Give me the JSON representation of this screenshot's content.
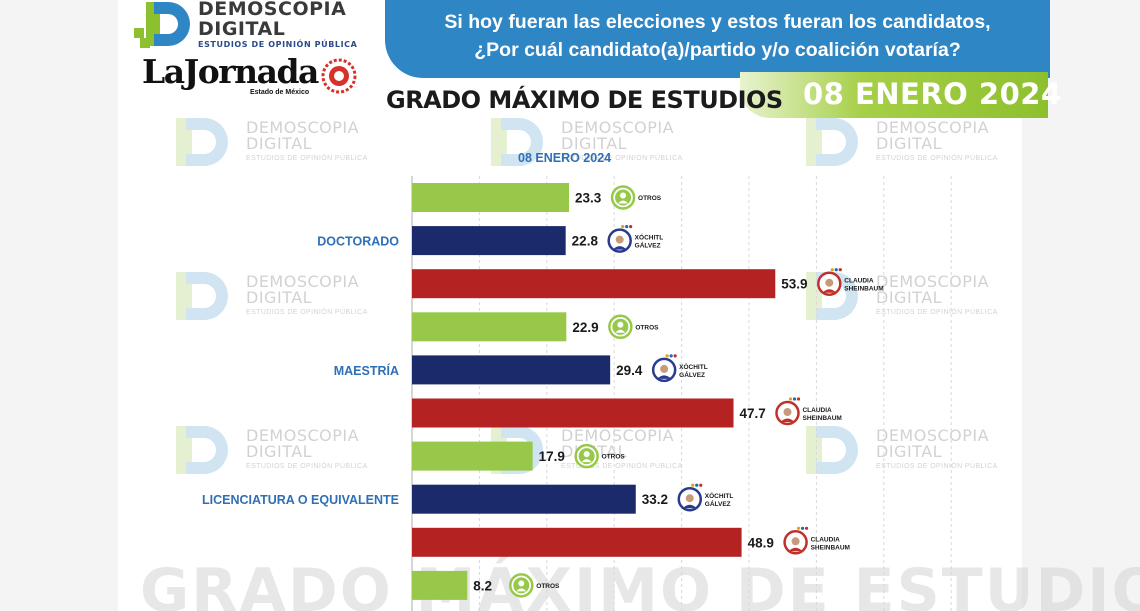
{
  "brand": {
    "logo_line1": "DEMOSCOPIA",
    "logo_line2": "DIGITAL",
    "logo_sub": "ESTUDIOS DE OPINIÓN PÚBLICA",
    "newspaper": "LaJornada",
    "newspaper_sub": "Estado de México"
  },
  "header": {
    "question_line1": "Si hoy fueran las elecciones y estos fueran los candidatos,",
    "question_line2": "¿Por cuál candidato(a)/partido y/o coalición votaría?",
    "date": "08 ENERO 2024",
    "section_title": "GRADO MÁXIMO DE ESTUDIOS"
  },
  "watermark": {
    "line1": "DEMOSCOPIA",
    "line2": "DIGITAL",
    "line3": "ESTUDIOS DE OPINIÓN PÚBLICA",
    "big_text": "GRADO MÁXIMO DE ESTUDIOS"
  },
  "colors": {
    "otros": "#97c84a",
    "xochitl": "#1b2a6b",
    "claudia": "#b52222",
    "label_blue": "#2f6fb5",
    "banner": "#2f86c5"
  },
  "chart_data": {
    "type": "bar",
    "orientation": "horizontal",
    "title": "08 ENERO 2024",
    "categories": [
      "DOCTORADO",
      "MAESTRÍA",
      "LICENCIATURA O EQUIVALENTE",
      ""
    ],
    "series": [
      {
        "name": "OTROS",
        "values": [
          23.3,
          22.9,
          17.9,
          8.2
        ]
      },
      {
        "name": "XÓCHITL GÁLVEZ",
        "values": [
          22.8,
          29.4,
          33.2,
          null
        ]
      },
      {
        "name": "CLAUDIA SHEINBAUM",
        "values": [
          53.9,
          47.7,
          48.9,
          null
        ]
      }
    ],
    "xlim": [
      0,
      100
    ],
    "grid": true,
    "legend": "none"
  }
}
